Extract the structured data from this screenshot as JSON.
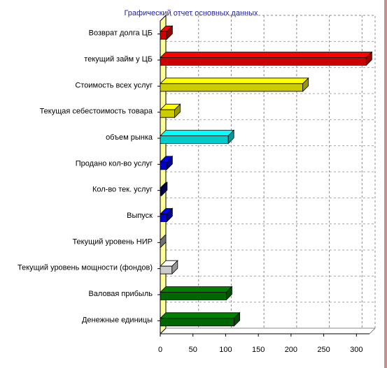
{
  "chart_data": {
    "type": "bar",
    "orientation": "horizontal",
    "title": "Графический отчет основных данных",
    "xlabel": "",
    "ylabel": "",
    "xlim": [
      0,
      320
    ],
    "xticks": [
      0,
      50,
      100,
      150,
      200,
      250,
      300
    ],
    "grid": true,
    "legend": "none",
    "three_d": true,
    "categories": [
      "Возврат долга ЦБ",
      "текущий займ у ЦБ",
      "Стоимость всех услуг",
      "Текущая себестоимость товара",
      "объем рынка",
      "Продано кол-во услуг",
      "Кол-во тек. услуг",
      "Выпуск",
      "Текущий уровень НИР",
      "Текущий уровень мощности (фондов)",
      "Валовая прибыль",
      "Денежные единицы"
    ],
    "values": [
      10,
      315,
      218,
      22,
      104,
      10,
      2,
      10,
      0,
      18,
      101,
      113
    ],
    "colors": [
      "#ff0000",
      "#ff0000",
      "#ffff00",
      "#ffff00",
      "#00ffff",
      "#0000ff",
      "#000080",
      "#0000ff",
      "#c0c0c0",
      "#ffffff",
      "#008000",
      "#008000"
    ]
  }
}
